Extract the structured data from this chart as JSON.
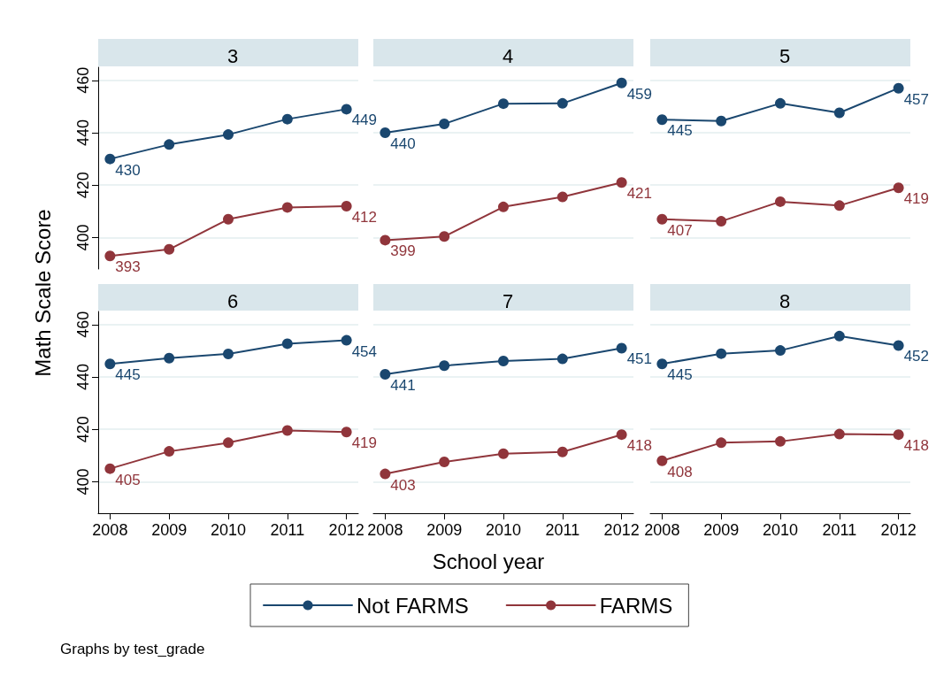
{
  "chart_data": [
    {
      "type": "line",
      "title": "3",
      "ylabel": "Math Scale Score",
      "x": [
        2008,
        2009,
        2010,
        2011,
        2012
      ],
      "xlim": [
        2007.8,
        2012.2
      ],
      "xticks": [
        2008,
        2009,
        2010,
        2011,
        2012
      ],
      "ylim": [
        388,
        465
      ],
      "yticks": [
        400,
        420,
        440,
        460
      ],
      "grid": "y",
      "marker": "circle",
      "tick_labels": "y",
      "series": [
        {
          "color": "#1a476f",
          "values": [
            430,
            435.5,
            439.3,
            445.2,
            449
          ],
          "value_labels": [
            "430",
            null,
            null,
            null,
            "449"
          ]
        },
        {
          "color": "#90353b",
          "values": [
            393,
            395.5,
            407,
            411.5,
            412
          ],
          "value_labels": [
            "393",
            null,
            null,
            null,
            "412"
          ]
        }
      ]
    },
    {
      "type": "line",
      "title": "4",
      "x": [
        2008,
        2009,
        2010,
        2011,
        2012
      ],
      "xlim": [
        2007.8,
        2012.2
      ],
      "xticks": [
        2008,
        2009,
        2010,
        2011,
        2012
      ],
      "yticks": [
        400,
        420,
        440,
        460
      ],
      "grid": "y",
      "marker": "circle",
      "tick_labels": false,
      "series": [
        {
          "color": "#1a476f",
          "values": [
            440,
            443.4,
            451.1,
            451.2,
            459
          ],
          "value_labels": [
            "440",
            null,
            null,
            null,
            "459"
          ]
        },
        {
          "color": "#90353b",
          "values": [
            399,
            400.4,
            411.7,
            415.5,
            421
          ],
          "value_labels": [
            "399",
            null,
            null,
            null,
            "421"
          ]
        }
      ]
    },
    {
      "type": "line",
      "title": "5",
      "x": [
        2008,
        2009,
        2010,
        2011,
        2012
      ],
      "xlim": [
        2007.8,
        2012.2
      ],
      "xticks": [
        2008,
        2009,
        2010,
        2011,
        2012
      ],
      "yticks": [
        400,
        420,
        440,
        460
      ],
      "grid": "y",
      "marker": "circle",
      "tick_labels": false,
      "series": [
        {
          "color": "#1a476f",
          "values": [
            445,
            444.5,
            451.2,
            447.6,
            457
          ],
          "value_labels": [
            "445",
            null,
            null,
            null,
            "457"
          ]
        },
        {
          "color": "#90353b",
          "values": [
            407,
            406.2,
            413.7,
            412.2,
            419
          ],
          "value_labels": [
            "407",
            null,
            null,
            null,
            "419"
          ]
        }
      ]
    },
    {
      "type": "line",
      "title": "6",
      "annotations": [
        "Graphs by test_grade"
      ],
      "x": [
        2008,
        2009,
        2010,
        2011,
        2012
      ],
      "xlim": [
        2007.8,
        2012.2
      ],
      "xticks": [
        2008,
        2009,
        2010,
        2011,
        2012
      ],
      "ylim": [
        388,
        465
      ],
      "yticks": [
        400,
        420,
        440,
        460
      ],
      "grid": "y",
      "marker": "circle",
      "series": [
        {
          "color": "#1a476f",
          "values": [
            445,
            447.2,
            448.8,
            452.7,
            454
          ],
          "value_labels": [
            "445",
            null,
            null,
            null,
            "454"
          ]
        },
        {
          "color": "#90353b",
          "values": [
            405,
            411.6,
            414.9,
            419.6,
            419
          ],
          "value_labels": [
            "405",
            null,
            null,
            null,
            "419"
          ]
        }
      ]
    },
    {
      "type": "line",
      "title": "7",
      "xlabel": "School year",
      "legend": "bottom",
      "x": [
        2008,
        2009,
        2010,
        2011,
        2012
      ],
      "xlim": [
        2007.8,
        2012.2
      ],
      "xticks": [
        2008,
        2009,
        2010,
        2011,
        2012
      ],
      "yticks": [
        400,
        420,
        440,
        460
      ],
      "grid": "y",
      "marker": "circle",
      "tick_labels": "x",
      "series": [
        {
          "name": "Not FARMS",
          "color": "#1a476f",
          "values": [
            441,
            444.3,
            446.1,
            446.9,
            451
          ],
          "value_labels": [
            "441",
            null,
            null,
            null,
            "451"
          ]
        },
        {
          "name": "FARMS",
          "color": "#90353b",
          "values": [
            403,
            407.6,
            410.7,
            411.4,
            418
          ],
          "value_labels": [
            "403",
            null,
            null,
            null,
            "418"
          ]
        }
      ]
    },
    {
      "type": "line",
      "title": "8",
      "x": [
        2008,
        2009,
        2010,
        2011,
        2012
      ],
      "xlim": [
        2007.8,
        2012.2
      ],
      "xticks": [
        2008,
        2009,
        2010,
        2011,
        2012
      ],
      "yticks": [
        400,
        420,
        440,
        460
      ],
      "grid": "y",
      "marker": "circle",
      "tick_labels": "x",
      "series": [
        {
          "color": "#1a476f",
          "values": [
            445,
            448.9,
            450.1,
            455.6,
            452
          ],
          "value_labels": [
            "445",
            null,
            null,
            null,
            "452"
          ]
        },
        {
          "color": "#90353b",
          "values": [
            408,
            414.9,
            415.4,
            418.2,
            418
          ],
          "value_labels": [
            "408",
            null,
            null,
            null,
            "418"
          ]
        }
      ]
    }
  ]
}
